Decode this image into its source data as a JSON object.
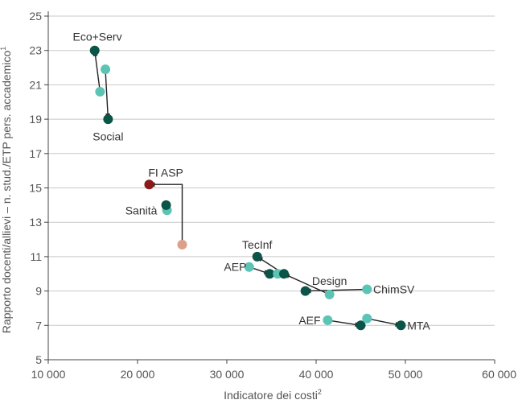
{
  "chart_data": {
    "type": "scatter",
    "xlabel": "Indicatore dei costi",
    "xlabel_sup": "2",
    "ylabel": "Rapporto docenti/allievi – n. stud./ETP pers. accademico",
    "ylabel_sup": "1",
    "xlim": [
      10000,
      60000
    ],
    "ylim": [
      5,
      25
    ],
    "x_ticks": [
      10000,
      20000,
      30000,
      40000,
      50000,
      60000
    ],
    "x_tick_labels": [
      "10 000",
      "20 000",
      "30 000",
      "40 000",
      "50 000",
      "60 000"
    ],
    "y_ticks": [
      5,
      7,
      9,
      11,
      13,
      15,
      17,
      19,
      21,
      23,
      25
    ],
    "y_tick_labels": [
      "5",
      "7",
      "9",
      "11",
      "13",
      "15",
      "17",
      "19",
      "21",
      "23",
      "25"
    ],
    "grid": "horizontal",
    "colors": {
      "dark": "#0b5448",
      "light": "#5cc4b4",
      "red": "#8b1a1a",
      "salmon": "#dba08a"
    },
    "points": [
      {
        "id": "ecoserv-dark",
        "x": 15200,
        "y": 23.0,
        "color": "dark"
      },
      {
        "id": "ecoserv-light-a",
        "x": 15800,
        "y": 20.6,
        "color": "light"
      },
      {
        "id": "ecoserv-light-b",
        "x": 16400,
        "y": 21.9,
        "color": "light"
      },
      {
        "id": "social-dark",
        "x": 16700,
        "y": 19.0,
        "color": "dark"
      },
      {
        "id": "fiasp-red",
        "x": 21300,
        "y": 15.2,
        "color": "red"
      },
      {
        "id": "fiasp-salmon",
        "x": 25000,
        "y": 11.7,
        "color": "salmon"
      },
      {
        "id": "sanita-light",
        "x": 23300,
        "y": 13.7,
        "color": "light"
      },
      {
        "id": "sanita-dark",
        "x": 23200,
        "y": 14.0,
        "color": "dark"
      },
      {
        "id": "tecinf-dark",
        "x": 33400,
        "y": 11.0,
        "color": "dark"
      },
      {
        "id": "aep-light",
        "x": 32500,
        "y": 10.4,
        "color": "light"
      },
      {
        "id": "aep-dark",
        "x": 34800,
        "y": 10.0,
        "color": "dark"
      },
      {
        "id": "aep-light-b",
        "x": 35700,
        "y": 10.0,
        "color": "light"
      },
      {
        "id": "design-dark",
        "x": 36400,
        "y": 10.0,
        "color": "dark"
      },
      {
        "id": "design-light",
        "x": 41500,
        "y": 8.8,
        "color": "light"
      },
      {
        "id": "chimsv-dark",
        "x": 38800,
        "y": 9.0,
        "color": "dark"
      },
      {
        "id": "chimsv-light",
        "x": 45700,
        "y": 9.1,
        "color": "light"
      },
      {
        "id": "aef-light",
        "x": 41300,
        "y": 7.3,
        "color": "light"
      },
      {
        "id": "aef-dark",
        "x": 45000,
        "y": 7.0,
        "color": "dark"
      },
      {
        "id": "mta-light",
        "x": 45700,
        "y": 7.4,
        "color": "light"
      },
      {
        "id": "mta-dark",
        "x": 49500,
        "y": 7.0,
        "color": "dark"
      }
    ],
    "arrows": [
      {
        "points": [
          [
            15800,
            20.6
          ],
          [
            15200,
            23.0
          ]
        ]
      },
      {
        "points": [
          [
            16400,
            21.9
          ],
          [
            16700,
            19.0
          ]
        ]
      },
      {
        "points": [
          [
            25000,
            11.7
          ],
          [
            25000,
            15.2
          ],
          [
            21300,
            15.2
          ]
        ]
      },
      {
        "points": [
          [
            23300,
            13.7
          ],
          [
            23200,
            14.0
          ]
        ]
      },
      {
        "points": [
          [
            32500,
            10.4
          ],
          [
            34800,
            10.0
          ]
        ]
      },
      {
        "points": [
          [
            36400,
            10.0
          ],
          [
            33400,
            11.0
          ]
        ]
      },
      {
        "points": [
          [
            41500,
            8.8
          ],
          [
            36400,
            10.0
          ]
        ]
      },
      {
        "points": [
          [
            45700,
            9.1
          ],
          [
            38800,
            9.0
          ]
        ]
      },
      {
        "points": [
          [
            41300,
            7.3
          ],
          [
            45000,
            7.0
          ]
        ]
      },
      {
        "points": [
          [
            45700,
            7.4
          ],
          [
            49500,
            7.0
          ]
        ]
      }
    ],
    "annotations": [
      {
        "text": "Eco+Serv",
        "x": 15500,
        "y": 23.8,
        "anchor": "middle"
      },
      {
        "text": "Social",
        "x": 16700,
        "y": 18.0,
        "anchor": "middle"
      },
      {
        "text": "FI ASP",
        "x": 21200,
        "y": 15.9,
        "anchor": "start"
      },
      {
        "text": "Sanità",
        "x": 22200,
        "y": 13.7,
        "anchor": "end"
      },
      {
        "text": "TecInf",
        "x": 33400,
        "y": 11.7,
        "anchor": "middle"
      },
      {
        "text": "AEP",
        "x": 32200,
        "y": 10.4,
        "anchor": "end"
      },
      {
        "text": "Design",
        "x": 41500,
        "y": 9.6,
        "anchor": "middle"
      },
      {
        "text": "ChimSV",
        "x": 46400,
        "y": 9.1,
        "anchor": "start"
      },
      {
        "text": "AEF",
        "x": 40500,
        "y": 7.3,
        "anchor": "end"
      },
      {
        "text": "MTA",
        "x": 50200,
        "y": 7.0,
        "anchor": "start"
      }
    ]
  }
}
